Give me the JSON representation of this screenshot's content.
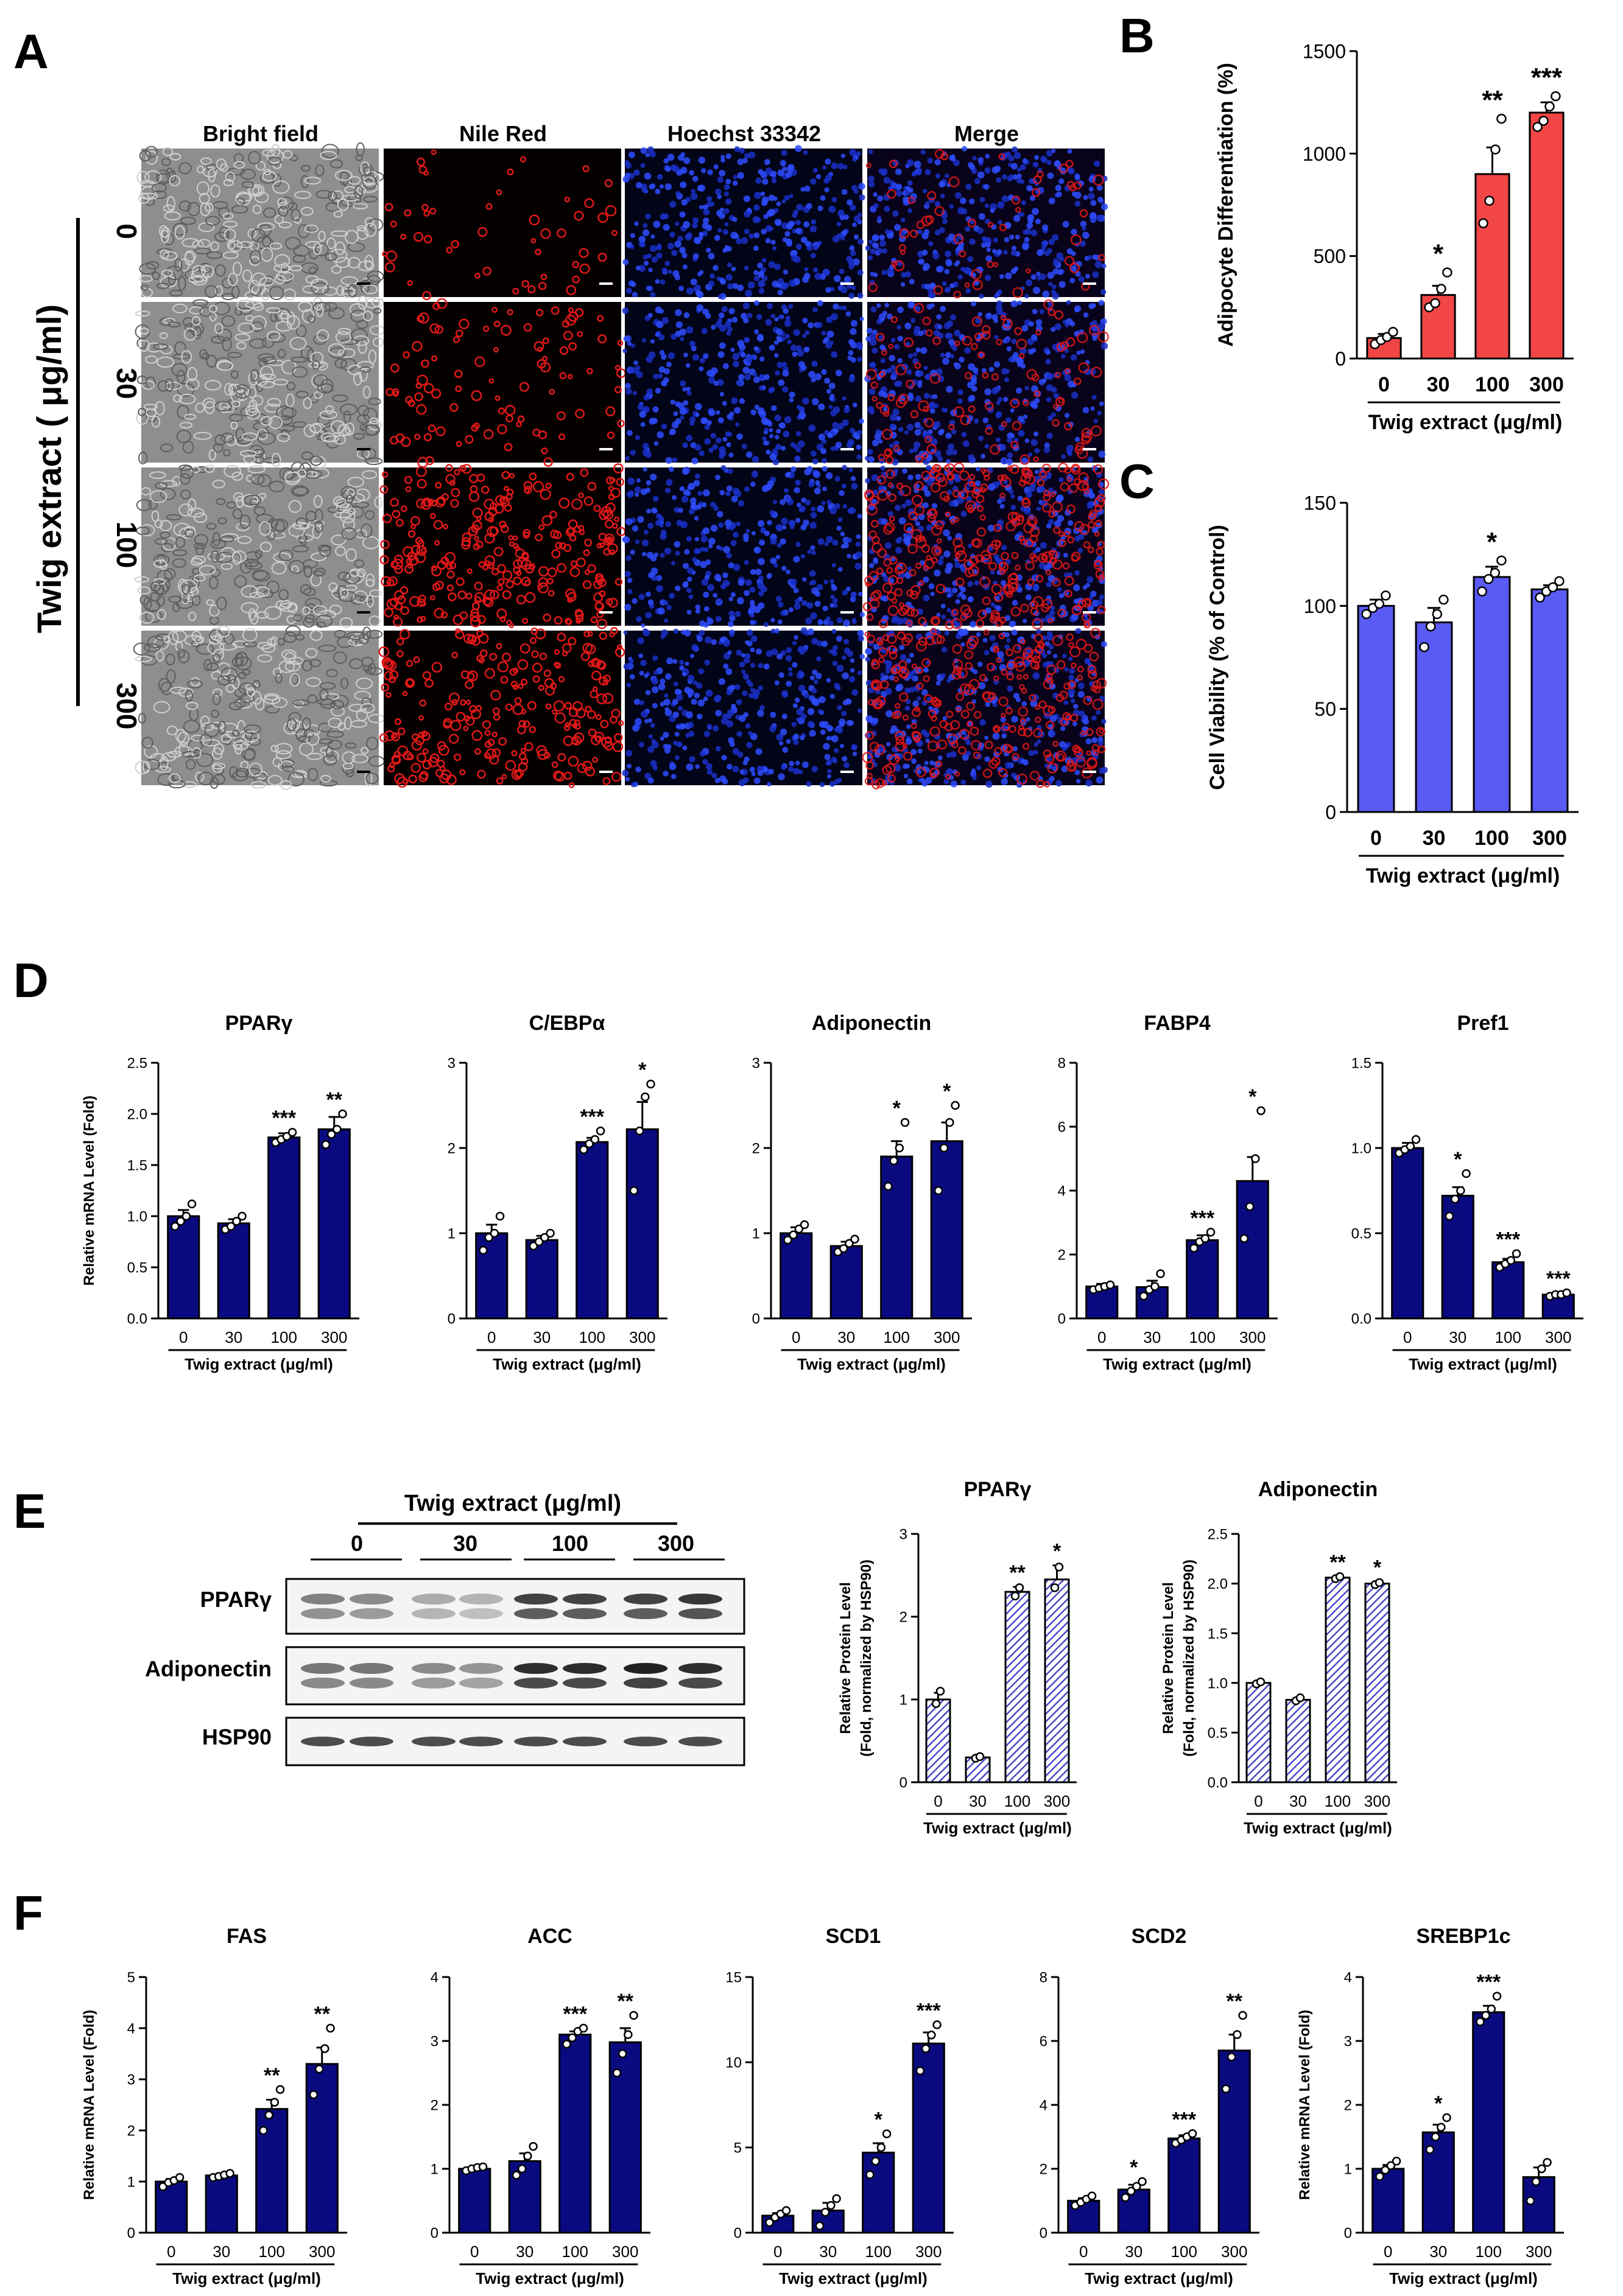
{
  "figure": {
    "panel_labels": [
      "A",
      "B",
      "C",
      "D",
      "E",
      "F"
    ],
    "panel_a": {
      "column_headers": [
        "Bright field",
        "Nile Red",
        "Hoechst 33342",
        "Merge"
      ],
      "row_labels": [
        "0",
        "30",
        "100",
        "300"
      ],
      "side_label": "Twig extract ( μg/ml)"
    },
    "panel_e": {
      "treatment_label": "Twig  extract (μg/ml)",
      "dose_labels": [
        "0",
        "30",
        "100",
        "300"
      ],
      "blot_labels": [
        "PPARγ",
        "Adiponectin",
        "HSP90"
      ]
    },
    "colors": {
      "red": "#f24646",
      "purple": "#5a5af5",
      "navy": "#0a0a80",
      "hatch": "#5a5ad8"
    }
  },
  "chart_data": [
    {
      "id": "B",
      "type": "bar",
      "title": "",
      "xlabel": "Twig extract (μg/ml)",
      "ylabel": "Adipocyte Differentiation  (%)",
      "categories": [
        "0",
        "30",
        "100",
        "300"
      ],
      "values": [
        100,
        310,
        900,
        1200
      ],
      "errors": [
        20,
        45,
        130,
        50
      ],
      "points": [
        [
          70,
          90,
          105,
          130
        ],
        [
          250,
          270,
          340,
          420
        ],
        [
          660,
          770,
          1020,
          1170
        ],
        [
          1130,
          1160,
          1230,
          1280
        ]
      ],
      "significance": [
        "",
        "*",
        "**",
        "***"
      ],
      "ylim": [
        0,
        1500
      ],
      "yticks": [
        "0",
        "500",
        "1000",
        "1500"
      ]
    },
    {
      "id": "C",
      "type": "bar",
      "title": "",
      "xlabel": "Twig extract (μg/ml)",
      "ylabel": "Cell Viability  (% of Control)",
      "categories": [
        "0",
        "30",
        "100",
        "300"
      ],
      "values": [
        100,
        92,
        114,
        108
      ],
      "errors": [
        3,
        7,
        5,
        2
      ],
      "points": [
        [
          96,
          99,
          101,
          105
        ],
        [
          80,
          90,
          96,
          103
        ],
        [
          107,
          113,
          116,
          122
        ],
        [
          104,
          107,
          109,
          112
        ]
      ],
      "significance": [
        "",
        "",
        "*",
        ""
      ],
      "ylim": [
        0,
        150
      ],
      "yticks": [
        "0",
        "50",
        "100",
        "150"
      ]
    },
    {
      "id": "D1",
      "type": "bar",
      "title": "PPARγ",
      "xlabel": "Twig extract (μg/ml)",
      "ylabel": "Relative mRNA Level (Fold)",
      "categories": [
        "0",
        "30",
        "100",
        "300"
      ],
      "values": [
        1.0,
        0.93,
        1.77,
        1.85
      ],
      "errors": [
        0.06,
        0.04,
        0.04,
        0.12
      ],
      "points": [
        [
          0.9,
          0.95,
          1.0,
          1.12
        ],
        [
          0.87,
          0.9,
          0.95,
          1.0
        ],
        [
          1.72,
          1.75,
          1.78,
          1.82
        ],
        [
          1.7,
          1.8,
          1.85,
          2.0
        ]
      ],
      "significance": [
        "",
        "",
        "***",
        "**"
      ],
      "ylim": [
        0,
        2.5
      ],
      "yticks": [
        "0.0",
        "0.5",
        "1.0",
        "1.5",
        "2.0",
        "2.5"
      ]
    },
    {
      "id": "D2",
      "type": "bar",
      "title": "C/EBPα",
      "xlabel": "Twig extract (μg/ml)",
      "ylabel": "",
      "categories": [
        "0",
        "30",
        "100",
        "300"
      ],
      "values": [
        1.0,
        0.92,
        2.07,
        2.22
      ],
      "errors": [
        0.1,
        0.05,
        0.05,
        0.32
      ],
      "points": [
        [
          0.8,
          0.95,
          1.0,
          1.2
        ],
        [
          0.85,
          0.9,
          0.95,
          1.0
        ],
        [
          1.98,
          2.05,
          2.1,
          2.2
        ],
        [
          1.5,
          2.2,
          2.6,
          2.75
        ]
      ],
      "significance": [
        "",
        "",
        "***",
        "*"
      ],
      "ylim": [
        0,
        3
      ],
      "yticks": [
        "0",
        "1",
        "2",
        "3"
      ]
    },
    {
      "id": "D3",
      "type": "bar",
      "title": "Adiponectin",
      "xlabel": "Twig extract (μg/ml)",
      "ylabel": "",
      "categories": [
        "0",
        "30",
        "100",
        "300"
      ],
      "values": [
        1.0,
        0.85,
        1.9,
        2.08
      ],
      "errors": [
        0.07,
        0.05,
        0.18,
        0.22
      ],
      "points": [
        [
          0.92,
          0.98,
          1.05,
          1.1
        ],
        [
          0.78,
          0.82,
          0.88,
          0.93
        ],
        [
          1.55,
          1.85,
          2.0,
          2.3
        ],
        [
          1.5,
          2.0,
          2.3,
          2.5
        ]
      ],
      "significance": [
        "",
        "",
        "*",
        "*"
      ],
      "ylim": [
        0,
        3
      ],
      "yticks": [
        "0",
        "1",
        "2",
        "3"
      ]
    },
    {
      "id": "D4",
      "type": "bar",
      "title": "FABP4",
      "xlabel": "Twig extract (μg/ml)",
      "ylabel": "",
      "categories": [
        "0",
        "30",
        "100",
        "300"
      ],
      "values": [
        1.0,
        0.98,
        2.45,
        4.3
      ],
      "errors": [
        0.08,
        0.2,
        0.15,
        0.75
      ],
      "points": [
        [
          0.9,
          0.95,
          1.0,
          1.05
        ],
        [
          0.7,
          0.9,
          1.0,
          1.4
        ],
        [
          2.2,
          2.4,
          2.5,
          2.7
        ],
        [
          2.5,
          3.5,
          5.0,
          6.5
        ]
      ],
      "significance": [
        "",
        "",
        "***",
        "*"
      ],
      "ylim": [
        0,
        8
      ],
      "yticks": [
        "0",
        "2",
        "4",
        "6",
        "8"
      ]
    },
    {
      "id": "D5",
      "type": "bar",
      "title": "Pref1",
      "xlabel": "Twig extract (μg/ml)",
      "ylabel": "",
      "categories": [
        "0",
        "30",
        "100",
        "300"
      ],
      "values": [
        1.0,
        0.72,
        0.33,
        0.14
      ],
      "errors": [
        0.03,
        0.05,
        0.02,
        0.01
      ],
      "points": [
        [
          0.97,
          0.99,
          1.01,
          1.05
        ],
        [
          0.6,
          0.7,
          0.75,
          0.85
        ],
        [
          0.3,
          0.32,
          0.34,
          0.38
        ],
        [
          0.13,
          0.14,
          0.14,
          0.15
        ]
      ],
      "significance": [
        "",
        "*",
        "***",
        "***"
      ],
      "ylim": [
        0,
        1.5
      ],
      "yticks": [
        "0.0",
        "0.5",
        "1.0",
        "1.5"
      ]
    },
    {
      "id": "E1",
      "type": "bar",
      "title": "PPARγ",
      "xlabel": "Twig extract (μg/ml)",
      "ylabel": "Relative Protein  Level\n(Fold, normalized by HSP90)",
      "categories": [
        "0",
        "30",
        "100",
        "300"
      ],
      "values": [
        1.0,
        0.3,
        2.3,
        2.45
      ],
      "errors": [
        0.08,
        0.02,
        0.06,
        0.17
      ],
      "points": [
        [
          0.95,
          1.1
        ],
        [
          0.29,
          0.31
        ],
        [
          2.25,
          2.35
        ],
        [
          2.35,
          2.6
        ]
      ],
      "significance": [
        "",
        "",
        "**",
        "*"
      ],
      "ylim": [
        0,
        3
      ],
      "yticks": [
        "0",
        "1",
        "2",
        "3"
      ],
      "hatched": true
    },
    {
      "id": "E2",
      "type": "bar",
      "title": "Adiponectin",
      "xlabel": "Twig extract (μg/ml)",
      "ylabel": "Relative Protein  Level\n(Fold, normalized by HSP90)",
      "categories": [
        "0",
        "30",
        "100",
        "300"
      ],
      "values": [
        1.0,
        0.83,
        2.06,
        2.0
      ],
      "errors": [
        0.01,
        0.02,
        0.01,
        0.02
      ],
      "points": [
        [
          0.99,
          1.01
        ],
        [
          0.82,
          0.85
        ],
        [
          2.05,
          2.07
        ],
        [
          1.99,
          2.01
        ]
      ],
      "significance": [
        "",
        "",
        "**",
        "*"
      ],
      "ylim": [
        0,
        2.5
      ],
      "yticks": [
        "0.0",
        "0.5",
        "1.0",
        "1.5",
        "2.0",
        "2.5"
      ],
      "hatched": true
    },
    {
      "id": "F1",
      "type": "bar",
      "title": "FAS",
      "xlabel": "Twig extract (μg/ml)",
      "ylabel": "Relative mRNA Level (Fold)",
      "categories": [
        "0",
        "30",
        "100",
        "300"
      ],
      "values": [
        1.0,
        1.12,
        2.42,
        3.3
      ],
      "errors": [
        0.05,
        0.04,
        0.18,
        0.32
      ],
      "points": [
        [
          0.9,
          0.98,
          1.02,
          1.08
        ],
        [
          1.08,
          1.1,
          1.13,
          1.16
        ],
        [
          2.0,
          2.3,
          2.55,
          2.8
        ],
        [
          2.7,
          3.2,
          3.6,
          4.0
        ]
      ],
      "significance": [
        "",
        "",
        "**",
        "**"
      ],
      "ylim": [
        0,
        5
      ],
      "yticks": [
        "0",
        "1",
        "2",
        "3",
        "4",
        "5"
      ]
    },
    {
      "id": "F2",
      "type": "bar",
      "title": "ACC",
      "xlabel": "Twig extract (μg/ml)",
      "ylabel": "",
      "categories": [
        "0",
        "30",
        "100",
        "300"
      ],
      "values": [
        1.0,
        1.12,
        3.1,
        2.98
      ],
      "errors": [
        0.02,
        0.12,
        0.05,
        0.22
      ],
      "points": [
        [
          0.97,
          1.0,
          1.02,
          1.03
        ],
        [
          0.9,
          1.0,
          1.2,
          1.35
        ],
        [
          2.95,
          3.05,
          3.15,
          3.2
        ],
        [
          2.5,
          2.8,
          3.1,
          3.4
        ]
      ],
      "significance": [
        "",
        "",
        "***",
        "**"
      ],
      "ylim": [
        0,
        4
      ],
      "yticks": [
        "0",
        "1",
        "2",
        "3",
        "4"
      ]
    },
    {
      "id": "F3",
      "type": "bar",
      "title": "SCD1",
      "xlabel": "Twig extract (μg/ml)",
      "ylabel": "",
      "categories": [
        "0",
        "30",
        "100",
        "300"
      ],
      "values": [
        1.0,
        1.3,
        4.7,
        11.1
      ],
      "errors": [
        0.15,
        0.45,
        0.55,
        0.65
      ],
      "points": [
        [
          0.6,
          0.9,
          1.1,
          1.3
        ],
        [
          0.4,
          1.2,
          1.6,
          2.0
        ],
        [
          3.4,
          4.2,
          5.0,
          5.8
        ],
        [
          9.5,
          10.8,
          11.6,
          12.2
        ]
      ],
      "significance": [
        "",
        "",
        "*",
        "***"
      ],
      "ylim": [
        0,
        15
      ],
      "yticks": [
        "0",
        "5",
        "10",
        "15"
      ]
    },
    {
      "id": "F4",
      "type": "bar",
      "title": "SCD2",
      "xlabel": "Twig extract (μg/ml)",
      "ylabel": "",
      "categories": [
        "0",
        "30",
        "100",
        "300"
      ],
      "values": [
        1.0,
        1.35,
        2.95,
        5.7
      ],
      "errors": [
        0.08,
        0.15,
        0.1,
        0.5
      ],
      "points": [
        [
          0.85,
          0.95,
          1.05,
          1.15
        ],
        [
          1.1,
          1.3,
          1.45,
          1.6
        ],
        [
          2.8,
          2.9,
          3.0,
          3.1
        ],
        [
          4.5,
          5.5,
          6.2,
          6.8
        ]
      ],
      "significance": [
        "",
        "*",
        "***",
        "**"
      ],
      "ylim": [
        0,
        8
      ],
      "yticks": [
        "0",
        "2",
        "4",
        "6",
        "8"
      ]
    },
    {
      "id": "F5",
      "type": "bar",
      "title": "SREBP1c",
      "xlabel": "Twig extract (μg/ml)",
      "ylabel": "Relative mRNA Level (Fold)",
      "categories": [
        "0",
        "30",
        "100",
        "300"
      ],
      "values": [
        1.0,
        1.57,
        3.45,
        0.87
      ],
      "errors": [
        0.06,
        0.12,
        0.1,
        0.15
      ],
      "points": [
        [
          0.88,
          0.98,
          1.05,
          1.12
        ],
        [
          1.3,
          1.5,
          1.65,
          1.8
        ],
        [
          3.3,
          3.4,
          3.5,
          3.7
        ],
        [
          0.5,
          0.8,
          1.0,
          1.1
        ]
      ],
      "significance": [
        "",
        "*",
        "***",
        ""
      ],
      "ylim": [
        0,
        4
      ],
      "yticks": [
        "0",
        "1",
        "2",
        "3",
        "4"
      ]
    }
  ]
}
